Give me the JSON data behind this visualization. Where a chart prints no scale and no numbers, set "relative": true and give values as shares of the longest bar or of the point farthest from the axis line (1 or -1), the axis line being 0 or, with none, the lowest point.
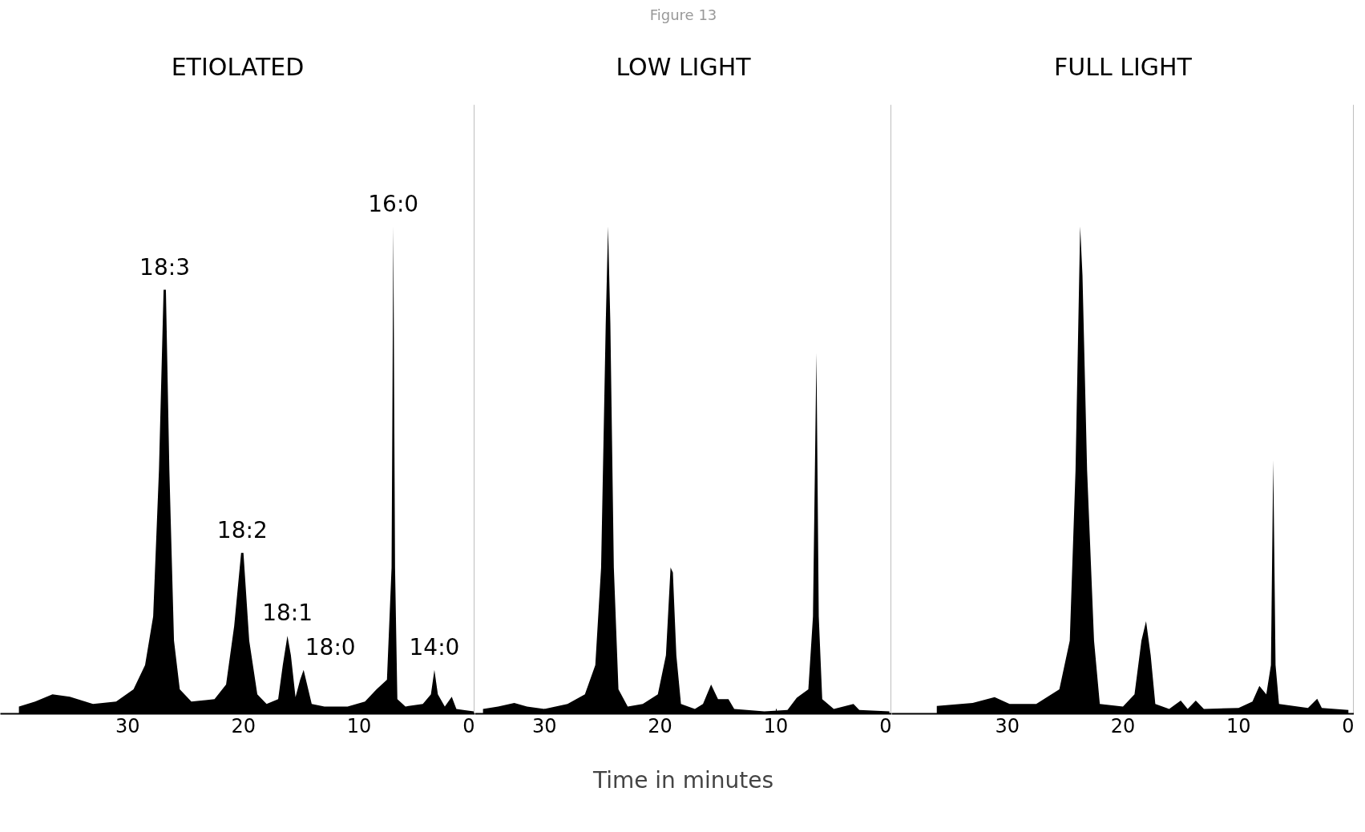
{
  "chart_data": [
    {
      "type": "area",
      "title": "ETIOLATED",
      "relative": true,
      "xlim": [
        41,
        0
      ],
      "xticks": [
        30,
        20,
        10,
        0
      ],
      "tick_labels": "x",
      "grid": false,
      "x": [
        39.4,
        38,
        36.5,
        35,
        33,
        31,
        29.5,
        28.5,
        27.8,
        27.3,
        26.9,
        26.7,
        26.4,
        26.0,
        25.5,
        24.5,
        22.5,
        21.5,
        20.8,
        20.2,
        20.0,
        19.5,
        18.8,
        18,
        17,
        16.6,
        16.2,
        15.9,
        15.5,
        15.1,
        14.8,
        14.5,
        14.1,
        13,
        11,
        9.5,
        8.5,
        7.6,
        7.2,
        7.05,
        6.9,
        6.7,
        6,
        4.5,
        3.8,
        3.5,
        3.2,
        2.6,
        2.0,
        1.6,
        1,
        0.1
      ],
      "series": [
        {
          "color": "#000000",
          "values": [
            0.015,
            0.025,
            0.04,
            0.035,
            0.02,
            0.025,
            0.05,
            0.1,
            0.2,
            0.5,
            0.87,
            0.87,
            0.5,
            0.15,
            0.05,
            0.025,
            0.03,
            0.06,
            0.18,
            0.33,
            0.33,
            0.15,
            0.04,
            0.02,
            0.03,
            0.1,
            0.16,
            0.12,
            0.034,
            0.07,
            0.09,
            0.06,
            0.02,
            0.015,
            0.015,
            0.025,
            0.05,
            0.07,
            0.3,
            1.0,
            0.3,
            0.03,
            0.015,
            0.02,
            0.04,
            0.09,
            0.04,
            0.015,
            0.035,
            0.01,
            0.008,
            0.005
          ]
        }
      ],
      "ref_lines": [
        {
          "axis": "x",
          "value": 0,
          "color": "#000000"
        }
      ],
      "annotations": [
        {
          "text": "18:3",
          "x": 26.8,
          "y": 0.87
        },
        {
          "text": "18:2",
          "x": 20.1,
          "y": 0.33
        },
        {
          "text": "18:1",
          "x": 16.2,
          "y": 0.16
        },
        {
          "text": "18:0",
          "x": 14.8,
          "y": 0.09
        },
        {
          "text": "16:0",
          "x": 7.05,
          "y": 1.0
        },
        {
          "text": "14:0",
          "x": 3.5,
          "y": 0.09
        }
      ]
    },
    {
      "type": "area",
      "title": "LOW LIGHT",
      "subtitle": "Figure 13",
      "xlabel": "Time in minutes",
      "relative": true,
      "xlim": [
        36,
        0
      ],
      "xticks": [
        30,
        20,
        10,
        0
      ],
      "tick_labels": "x",
      "grid": false,
      "x": [
        35.3,
        34,
        32.6,
        31.5,
        30,
        28,
        26.5,
        25.6,
        25.1,
        24.7,
        24.5,
        24.3,
        24.0,
        23.6,
        22.8,
        21.5,
        20.2,
        19.5,
        19.1,
        18.9,
        18.6,
        18.2,
        17,
        16.3,
        15.6,
        15.0,
        14.1,
        13.6,
        11,
        9,
        8.2,
        7.2,
        6.8,
        6.5,
        6.3,
        6.0,
        5,
        3.3,
        2.8,
        0.2
      ],
      "series": [
        {
          "color": "#000000",
          "values": [
            0.01,
            0.015,
            0.022,
            0.015,
            0.01,
            0.02,
            0.04,
            0.1,
            0.3,
            0.8,
            1.0,
            0.8,
            0.3,
            0.05,
            0.015,
            0.02,
            0.04,
            0.12,
            0.3,
            0.29,
            0.12,
            0.02,
            0.01,
            0.02,
            0.06,
            0.03,
            0.03,
            0.01,
            0.005,
            0.008,
            0.033,
            0.05,
            0.2,
            0.74,
            0.2,
            0.03,
            0.01,
            0.02,
            0.008,
            0.005
          ]
        }
      ],
      "ref_lines": [
        {
          "axis": "x",
          "value": 0,
          "color": "#000000"
        }
      ]
    },
    {
      "type": "area",
      "title": "FULL LIGHT",
      "relative": true,
      "xlim": [
        40,
        0
      ],
      "xticks": [
        30,
        20,
        10,
        0
      ],
      "tick_labels": "x",
      "grid": false,
      "x": [
        36.1,
        33,
        31.1,
        29.8,
        27.5,
        25.5,
        24.6,
        24.1,
        23.7,
        23.5,
        23.1,
        22.5,
        22.0,
        20,
        19,
        18.4,
        18.0,
        17.6,
        17.2,
        16,
        15.0,
        14.4,
        13.7,
        13.0,
        10,
        8.8,
        8.2,
        7.6,
        7.2,
        7.0,
        6.8,
        6.5,
        4,
        3.2,
        2.8,
        0.5
      ],
      "series": [
        {
          "color": "#000000",
          "values": [
            0.016,
            0.022,
            0.034,
            0.02,
            0.02,
            0.05,
            0.15,
            0.5,
            1.0,
            0.9,
            0.5,
            0.15,
            0.02,
            0.015,
            0.04,
            0.15,
            0.19,
            0.12,
            0.02,
            0.01,
            0.027,
            0.01,
            0.027,
            0.01,
            0.012,
            0.025,
            0.057,
            0.04,
            0.1,
            0.52,
            0.1,
            0.02,
            0.012,
            0.031,
            0.012,
            0.008
          ]
        }
      ],
      "ref_lines": [
        {
          "axis": "x",
          "value": 0,
          "color": "#000000"
        }
      ]
    }
  ]
}
